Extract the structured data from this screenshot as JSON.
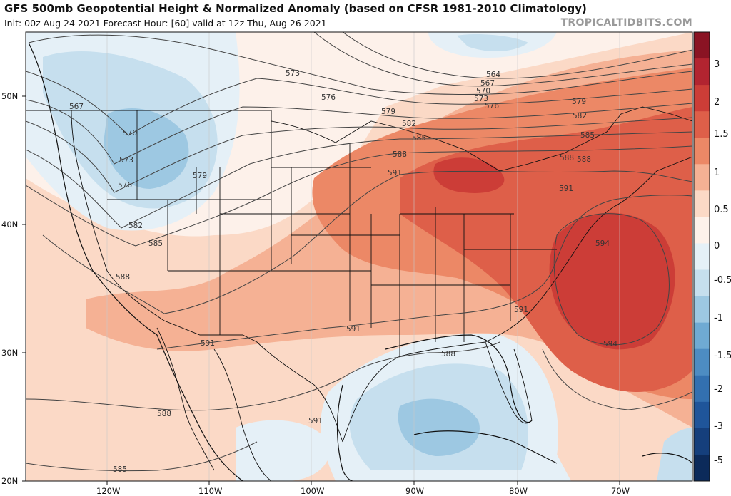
{
  "header": {
    "title": "GFS 500mb Geopotential Height & Normalized Anomaly (based on CFSR 1981-2010 Climatology)",
    "subtitle": "Init: 00z Aug 24 2021   Forecast Hour: [60]   valid at 12z Thu, Aug 26 2021",
    "credit": "TROPICALTIDBITS.COM"
  },
  "colorbar": {
    "ticks": [
      "3",
      "2",
      "1.5",
      "1",
      "0.5",
      "0",
      "-0.5",
      "-1",
      "-1.5",
      "-2",
      "-3",
      "-5"
    ],
    "colors": [
      "#8a1323",
      "#b22430",
      "#cc3d37",
      "#de5f49",
      "#ec8866",
      "#f5b194",
      "#fbd9c6",
      "#fdf1ea",
      "#e5f0f7",
      "#c6dfee",
      "#9dc8e2",
      "#6faad3",
      "#4d8cc2",
      "#3370b0",
      "#1f559a",
      "#153f7c",
      "#0c2a5a"
    ]
  },
  "axes": {
    "lat_labels": [
      "50N",
      "40N",
      "30N",
      "20N"
    ],
    "lon_labels": [
      "120W",
      "110W",
      "100W",
      "90W",
      "80W",
      "70W"
    ]
  },
  "contour_labels": [
    {
      "value": "564"
    },
    {
      "value": "567"
    },
    {
      "value": "570"
    },
    {
      "value": "573"
    },
    {
      "value": "576"
    },
    {
      "value": "579"
    },
    {
      "value": "582"
    },
    {
      "value": "585"
    },
    {
      "value": "588"
    },
    {
      "value": "591"
    },
    {
      "value": "594"
    },
    {
      "value": "567"
    },
    {
      "value": "570"
    },
    {
      "value": "573"
    },
    {
      "value": "576"
    },
    {
      "value": "579"
    },
    {
      "value": "582"
    },
    {
      "value": "585"
    },
    {
      "value": "588"
    },
    {
      "value": "591"
    },
    {
      "value": "594"
    },
    {
      "value": "588"
    },
    {
      "value": "588"
    },
    {
      "value": "585"
    },
    {
      "value": "573"
    },
    {
      "value": "576"
    },
    {
      "value": "579"
    },
    {
      "value": "582"
    },
    {
      "value": "585"
    },
    {
      "value": "588"
    },
    {
      "value": "591"
    },
    {
      "value": "591"
    },
    {
      "value": "591"
    },
    {
      "value": "591"
    },
    {
      "value": "588"
    }
  ]
}
